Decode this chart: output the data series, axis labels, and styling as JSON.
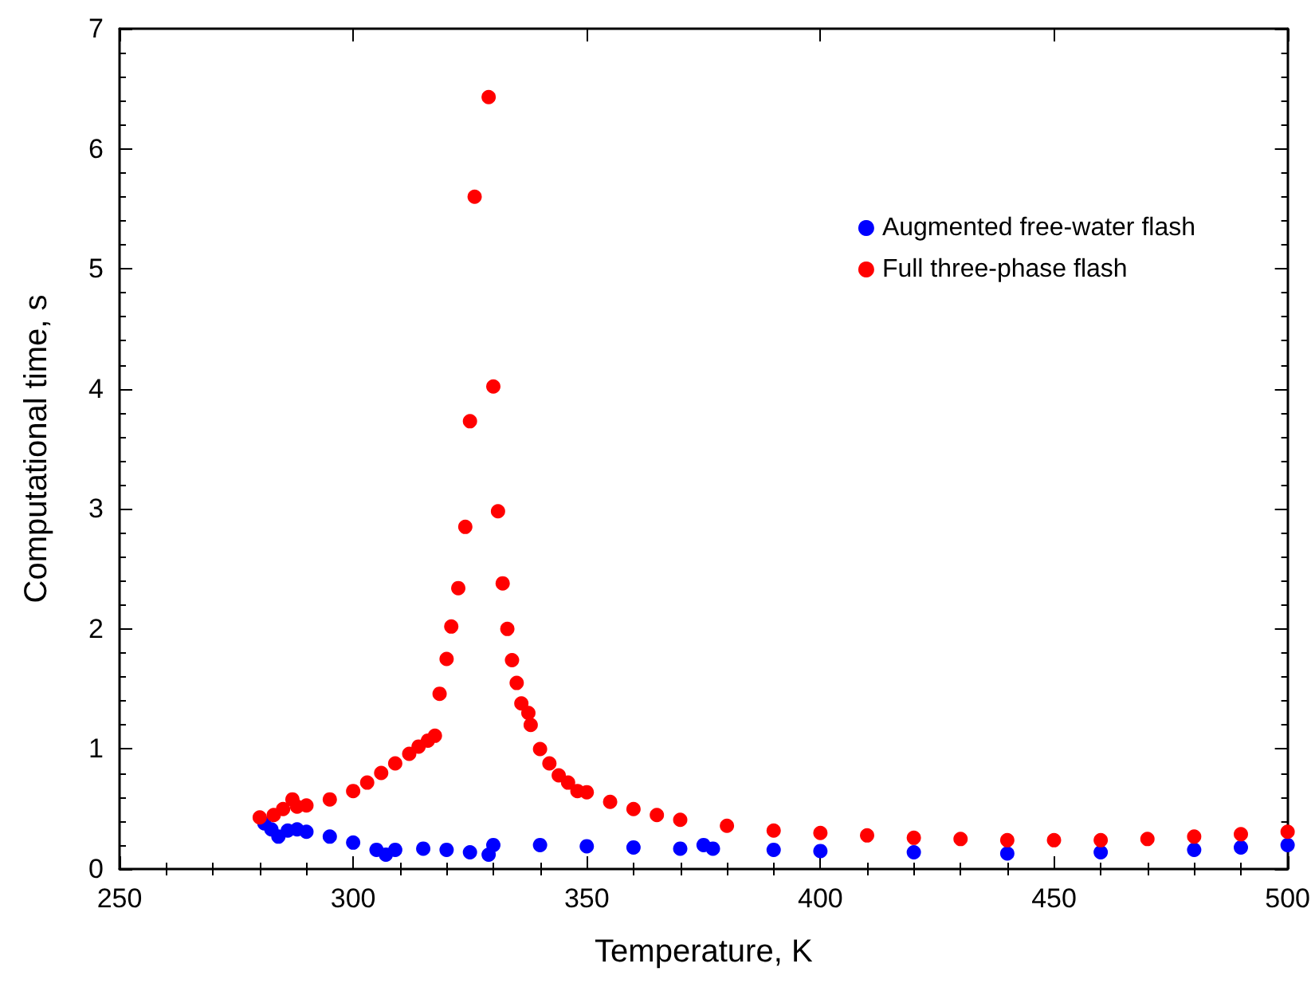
{
  "chart_data": {
    "type": "scatter",
    "xlabel": "Temperature, K",
    "ylabel": "Computational time, s",
    "xlim": [
      250,
      500
    ],
    "xticks": [
      250,
      300,
      350,
      400,
      450,
      500
    ],
    "ylim": [
      0,
      7
    ],
    "yticks": [
      0,
      1,
      2,
      3,
      4,
      5,
      6,
      7
    ],
    "grid": false,
    "legend": "top right",
    "marker": "circle",
    "series": [
      {
        "name": "Augmented free-water flash",
        "color": "#0000ff",
        "x": [
          281,
          282.5,
          284,
          286,
          288,
          290,
          295,
          300,
          305,
          307,
          309,
          315,
          320,
          325,
          329,
          330,
          340,
          350,
          360,
          370,
          375,
          377,
          390,
          400,
          420,
          440,
          460,
          480,
          490,
          500
        ],
        "values": [
          0.38,
          0.33,
          0.27,
          0.32,
          0.33,
          0.31,
          0.27,
          0.22,
          0.16,
          0.12,
          0.16,
          0.17,
          0.16,
          0.14,
          0.12,
          0.2,
          0.2,
          0.19,
          0.18,
          0.17,
          0.2,
          0.17,
          0.16,
          0.15,
          0.14,
          0.13,
          0.14,
          0.16,
          0.18,
          0.2
        ]
      },
      {
        "name": "Full three-phase flash",
        "color": "#ff0000",
        "x": [
          280,
          283,
          285,
          287,
          288,
          290,
          295,
          300,
          303,
          306,
          309,
          312,
          314,
          316,
          317.5,
          318.5,
          320,
          321,
          322.5,
          324,
          325,
          326,
          329,
          330,
          331,
          332,
          333,
          334,
          335,
          336,
          337.5,
          338,
          340,
          342,
          344,
          346,
          348,
          350,
          355,
          360,
          365,
          370,
          380,
          390,
          400,
          410,
          420,
          430,
          440,
          450,
          460,
          470,
          480,
          490,
          500
        ],
        "values": [
          0.43,
          0.45,
          0.5,
          0.58,
          0.52,
          0.53,
          0.58,
          0.65,
          0.72,
          0.8,
          0.88,
          0.96,
          1.02,
          1.07,
          1.11,
          1.46,
          1.75,
          2.02,
          2.34,
          2.85,
          3.73,
          5.6,
          6.43,
          4.02,
          2.98,
          2.38,
          2.0,
          1.74,
          1.55,
          1.38,
          1.3,
          1.2,
          1.0,
          0.88,
          0.78,
          0.72,
          0.65,
          0.64,
          0.56,
          0.5,
          0.45,
          0.41,
          0.36,
          0.32,
          0.3,
          0.28,
          0.26,
          0.25,
          0.24,
          0.24,
          0.24,
          0.25,
          0.27,
          0.29,
          0.31
        ]
      }
    ]
  }
}
